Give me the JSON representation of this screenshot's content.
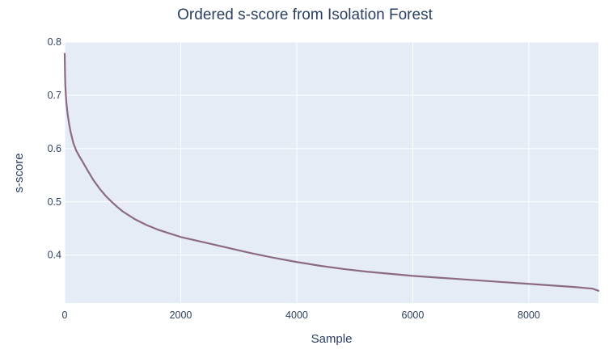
{
  "chart_data": {
    "type": "line",
    "title": "Ordered s-score from Isolation Forest",
    "xlabel": "Sample",
    "ylabel": "s-score",
    "xlim": [
      0,
      9200
    ],
    "ylim": [
      0.31,
      0.8
    ],
    "x_ticks": [
      0,
      2000,
      4000,
      6000,
      8000
    ],
    "x_tick_labels": [
      "0",
      "2000",
      "4000",
      "6000",
      "8000"
    ],
    "y_ticks": [
      0.4,
      0.5,
      0.6,
      0.7,
      0.8
    ],
    "y_tick_labels": [
      "0.4",
      "0.5",
      "0.6",
      "0.7",
      "0.8"
    ],
    "grid": true,
    "colors": {
      "plot_background": "#e5ecf6",
      "grid": "#ffffff",
      "line": "#8c6a84",
      "text": "#2a3f5f"
    },
    "series": [
      {
        "x": [
          0,
          5,
          10,
          20,
          30,
          50,
          75,
          100,
          150,
          200,
          250,
          300,
          400,
          500,
          600,
          700,
          800,
          900,
          1000,
          1200,
          1400,
          1600,
          1800,
          2000,
          2400,
          2800,
          3200,
          3600,
          4000,
          4400,
          4800,
          5200,
          5600,
          6000,
          6400,
          6800,
          7200,
          7600,
          8000,
          8400,
          8800,
          9000,
          9100,
          9150,
          9200
        ],
        "values": [
          0.778,
          0.745,
          0.72,
          0.7,
          0.685,
          0.665,
          0.647,
          0.632,
          0.61,
          0.596,
          0.586,
          0.577,
          0.558,
          0.54,
          0.525,
          0.512,
          0.501,
          0.491,
          0.482,
          0.468,
          0.457,
          0.448,
          0.441,
          0.434,
          0.424,
          0.414,
          0.404,
          0.395,
          0.387,
          0.38,
          0.374,
          0.369,
          0.365,
          0.361,
          0.358,
          0.355,
          0.352,
          0.349,
          0.346,
          0.343,
          0.34,
          0.338,
          0.337,
          0.335,
          0.333
        ]
      }
    ]
  }
}
